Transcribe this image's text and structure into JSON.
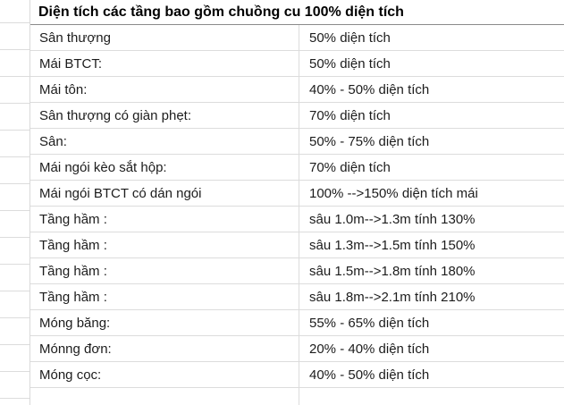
{
  "table": {
    "title": "Diện tích các tầng bao gồm chuồng cu 100% diện tích",
    "columns": [
      "label",
      "value"
    ],
    "rows": [
      {
        "label": "Sân thượng",
        "value": "50% diện tích"
      },
      {
        "label": "Mái BTCT:",
        "value": "50% diện tích"
      },
      {
        "label": "Mái tôn:",
        "value": "40% - 50% diện tích"
      },
      {
        "label": "Sân thượng có giàn phẹt:",
        "value": "70% diện tích"
      },
      {
        "label": "Sân:",
        "value": "50% - 75% diện tích"
      },
      {
        "label": "Mái ngói kèo sắt hộp:",
        "value": "70% diện tích"
      },
      {
        "label": "Mái ngói BTCT có dán ngói",
        "value": "100% -->150% diện tích mái"
      },
      {
        "label": "Tầng hầm :",
        "value": "sâu 1.0m-->1.3m tính 130%"
      },
      {
        "label": "Tầng hầm :",
        "value": "sâu 1.3m-->1.5m tính 150%"
      },
      {
        "label": "Tầng hầm :",
        "value": "sâu 1.5m-->1.8m tính 180%"
      },
      {
        "label": "Tầng hầm :",
        "value": "sâu 1.8m-->2.1m tính 210%"
      },
      {
        "label": "Móng băng:",
        "value": "55% - 65% diện tích"
      },
      {
        "label": "Mónng đơn:",
        "value": "20% - 40% diện tích"
      },
      {
        "label": "Móng cọc:",
        "value": "40% - 50% diện tích"
      },
      {
        "label": "",
        "value": ""
      }
    ],
    "colors": {
      "gridline": "#dcdcdc",
      "header_underline": "#8a8a8a",
      "text": "#1c1c1c",
      "background": "#ffffff"
    }
  }
}
